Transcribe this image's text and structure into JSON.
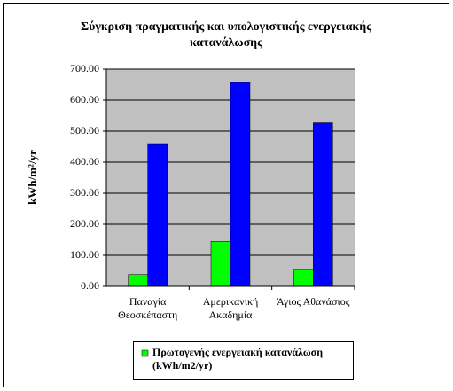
{
  "chart_data": {
    "type": "bar",
    "title": "Σύγκριση πραγματικής και υπολογιστικής ενεργειακής κατανάλωσης",
    "y_label": "kWh/m²/yr",
    "categories": [
      "Παναγία Θεοσκέπαστη",
      "Αμερικανική Ακαδημία",
      "Άγιος Αθανάσιος"
    ],
    "series": [
      {
        "name": "Πρωτογενής ενεργειακή κατανάλωση (kWh/m2/yr)",
        "color": "#00ff00",
        "values": [
          38,
          145,
          55
        ]
      },
      {
        "color": "#0000ff",
        "values": [
          460,
          657,
          527
        ]
      }
    ],
    "ylim": [
      0,
      700
    ],
    "yticks": [
      {
        "value": 0,
        "label": "0.00"
      },
      {
        "value": 100,
        "label": "100.00"
      },
      {
        "value": 200,
        "label": "200.00"
      },
      {
        "value": 300,
        "label": "300.00"
      },
      {
        "value": 400,
        "label": "400.00"
      },
      {
        "value": 500,
        "label": "500.00"
      },
      {
        "value": 600,
        "label": "600.00"
      },
      {
        "value": 700,
        "label": "700.00"
      }
    ],
    "grid": true,
    "plot_background": "#c0c0c0"
  }
}
